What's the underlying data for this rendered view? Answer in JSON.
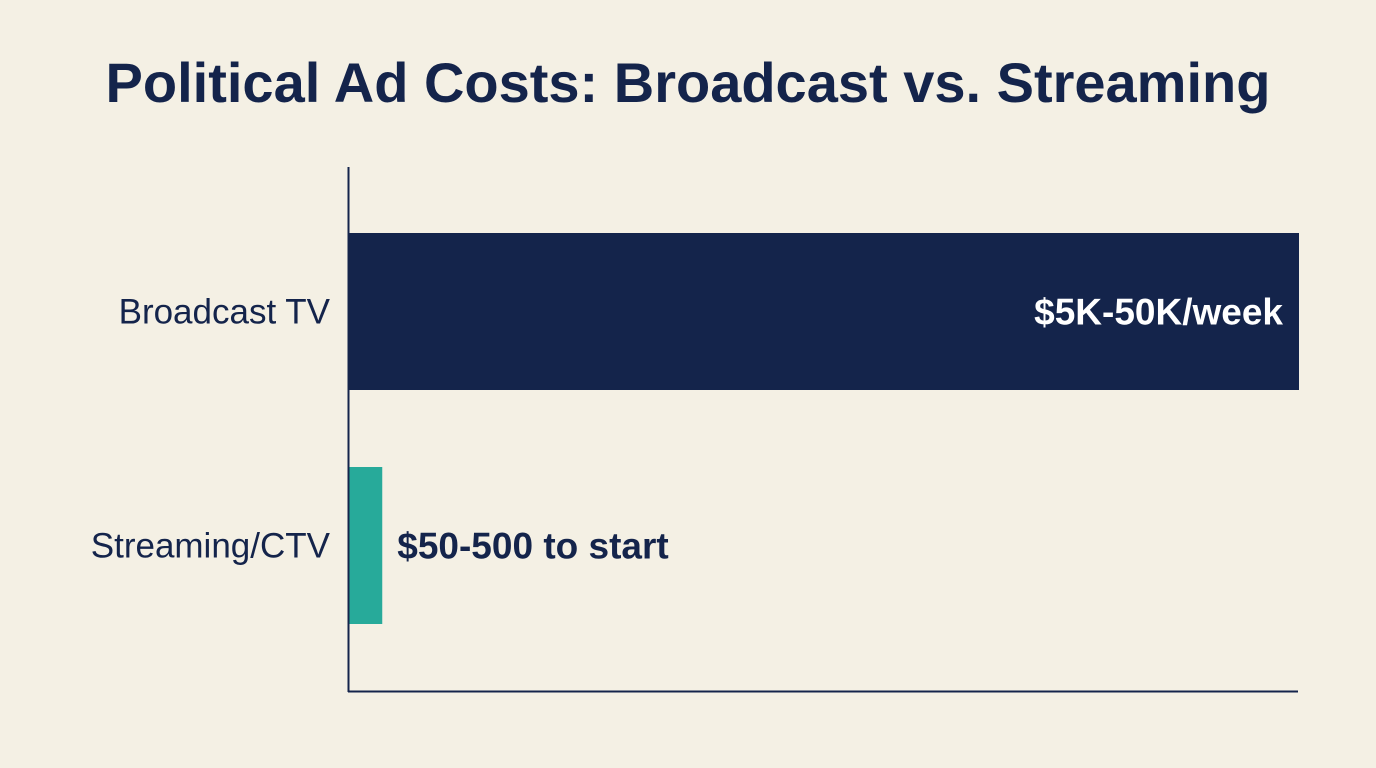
{
  "chart_data": {
    "type": "bar",
    "orientation": "horizontal",
    "title": "Political Ad Costs: Broadcast vs. Streaming",
    "categories": [
      "Broadcast TV",
      "Streaming/CTV"
    ],
    "values_relative": [
      1.0,
      0.035
    ],
    "data_labels": [
      "$5K-50K/week",
      "$50-500 to start"
    ],
    "colors": [
      "#14244b",
      "#27aa9a"
    ],
    "label_colors": [
      "#ffffff",
      "#14244b"
    ],
    "xlabel": "",
    "ylabel": "",
    "grid": false,
    "legend": "none"
  },
  "colors": {
    "background": "#f4f0e4",
    "axis": "#14244b"
  }
}
